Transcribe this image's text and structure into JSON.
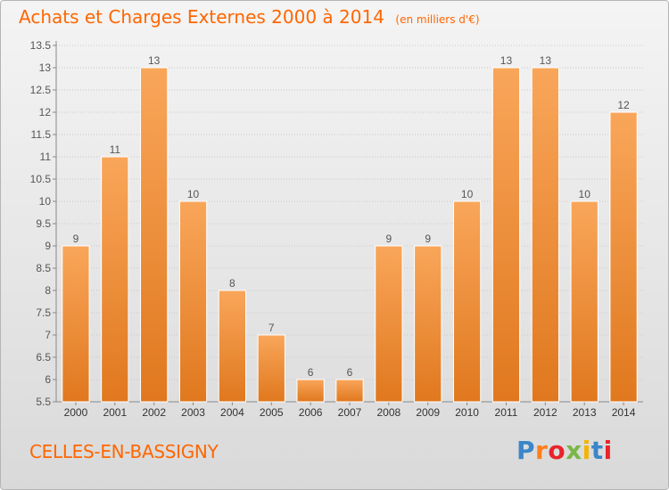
{
  "title": "Achats et Charges Externes 2000 à 2014",
  "subtitle": "(en milliers d'€)",
  "commune": "CELLES-EN-BASSIGNY",
  "logo": {
    "text": "Proxiti",
    "letter_colors": [
      "#3a86c8",
      "#ff7f1a",
      "#e8242a",
      "#7ab648",
      "#f4b400",
      "#3a86c8",
      "#e8242a"
    ]
  },
  "colors": {
    "bar_top": "#f9a65a",
    "bar_bottom": "#e0781e",
    "bar_stroke": "#ffffff",
    "label": "#555555",
    "title": "#ff6600"
  },
  "chart_data": {
    "type": "bar",
    "title": "Achats et Charges Externes 2000 à 2014",
    "subtitle": "(en milliers d'€)",
    "xlabel": "",
    "ylabel": "",
    "categories": [
      "2000",
      "2001",
      "2002",
      "2003",
      "2004",
      "2005",
      "2006",
      "2007",
      "2008",
      "2009",
      "2010",
      "2011",
      "2012",
      "2013",
      "2014"
    ],
    "values": [
      9,
      11,
      13,
      10,
      8,
      7,
      6,
      6,
      9,
      9,
      10,
      13,
      13,
      10,
      12
    ],
    "data_labels": [
      "9",
      "11",
      "13",
      "10",
      "8",
      "7",
      "6",
      "6",
      "9",
      "9",
      "10",
      "13",
      "13",
      "10",
      "12"
    ],
    "ylim": [
      5.5,
      13.5
    ],
    "yticks": [
      5.5,
      6,
      6.5,
      7,
      7.5,
      8,
      8.5,
      9,
      9.5,
      10,
      10.5,
      11,
      11.5,
      12,
      12.5,
      13,
      13.5
    ],
    "ytick_labels": [
      "5.5",
      "6",
      "6.5",
      "7",
      "7.5",
      "8",
      "8.5",
      "9",
      "9.5",
      "10",
      "10.5",
      "11",
      "11.5",
      "12",
      "12.5",
      "13",
      "13.5"
    ],
    "grid": true,
    "legend": "none"
  }
}
